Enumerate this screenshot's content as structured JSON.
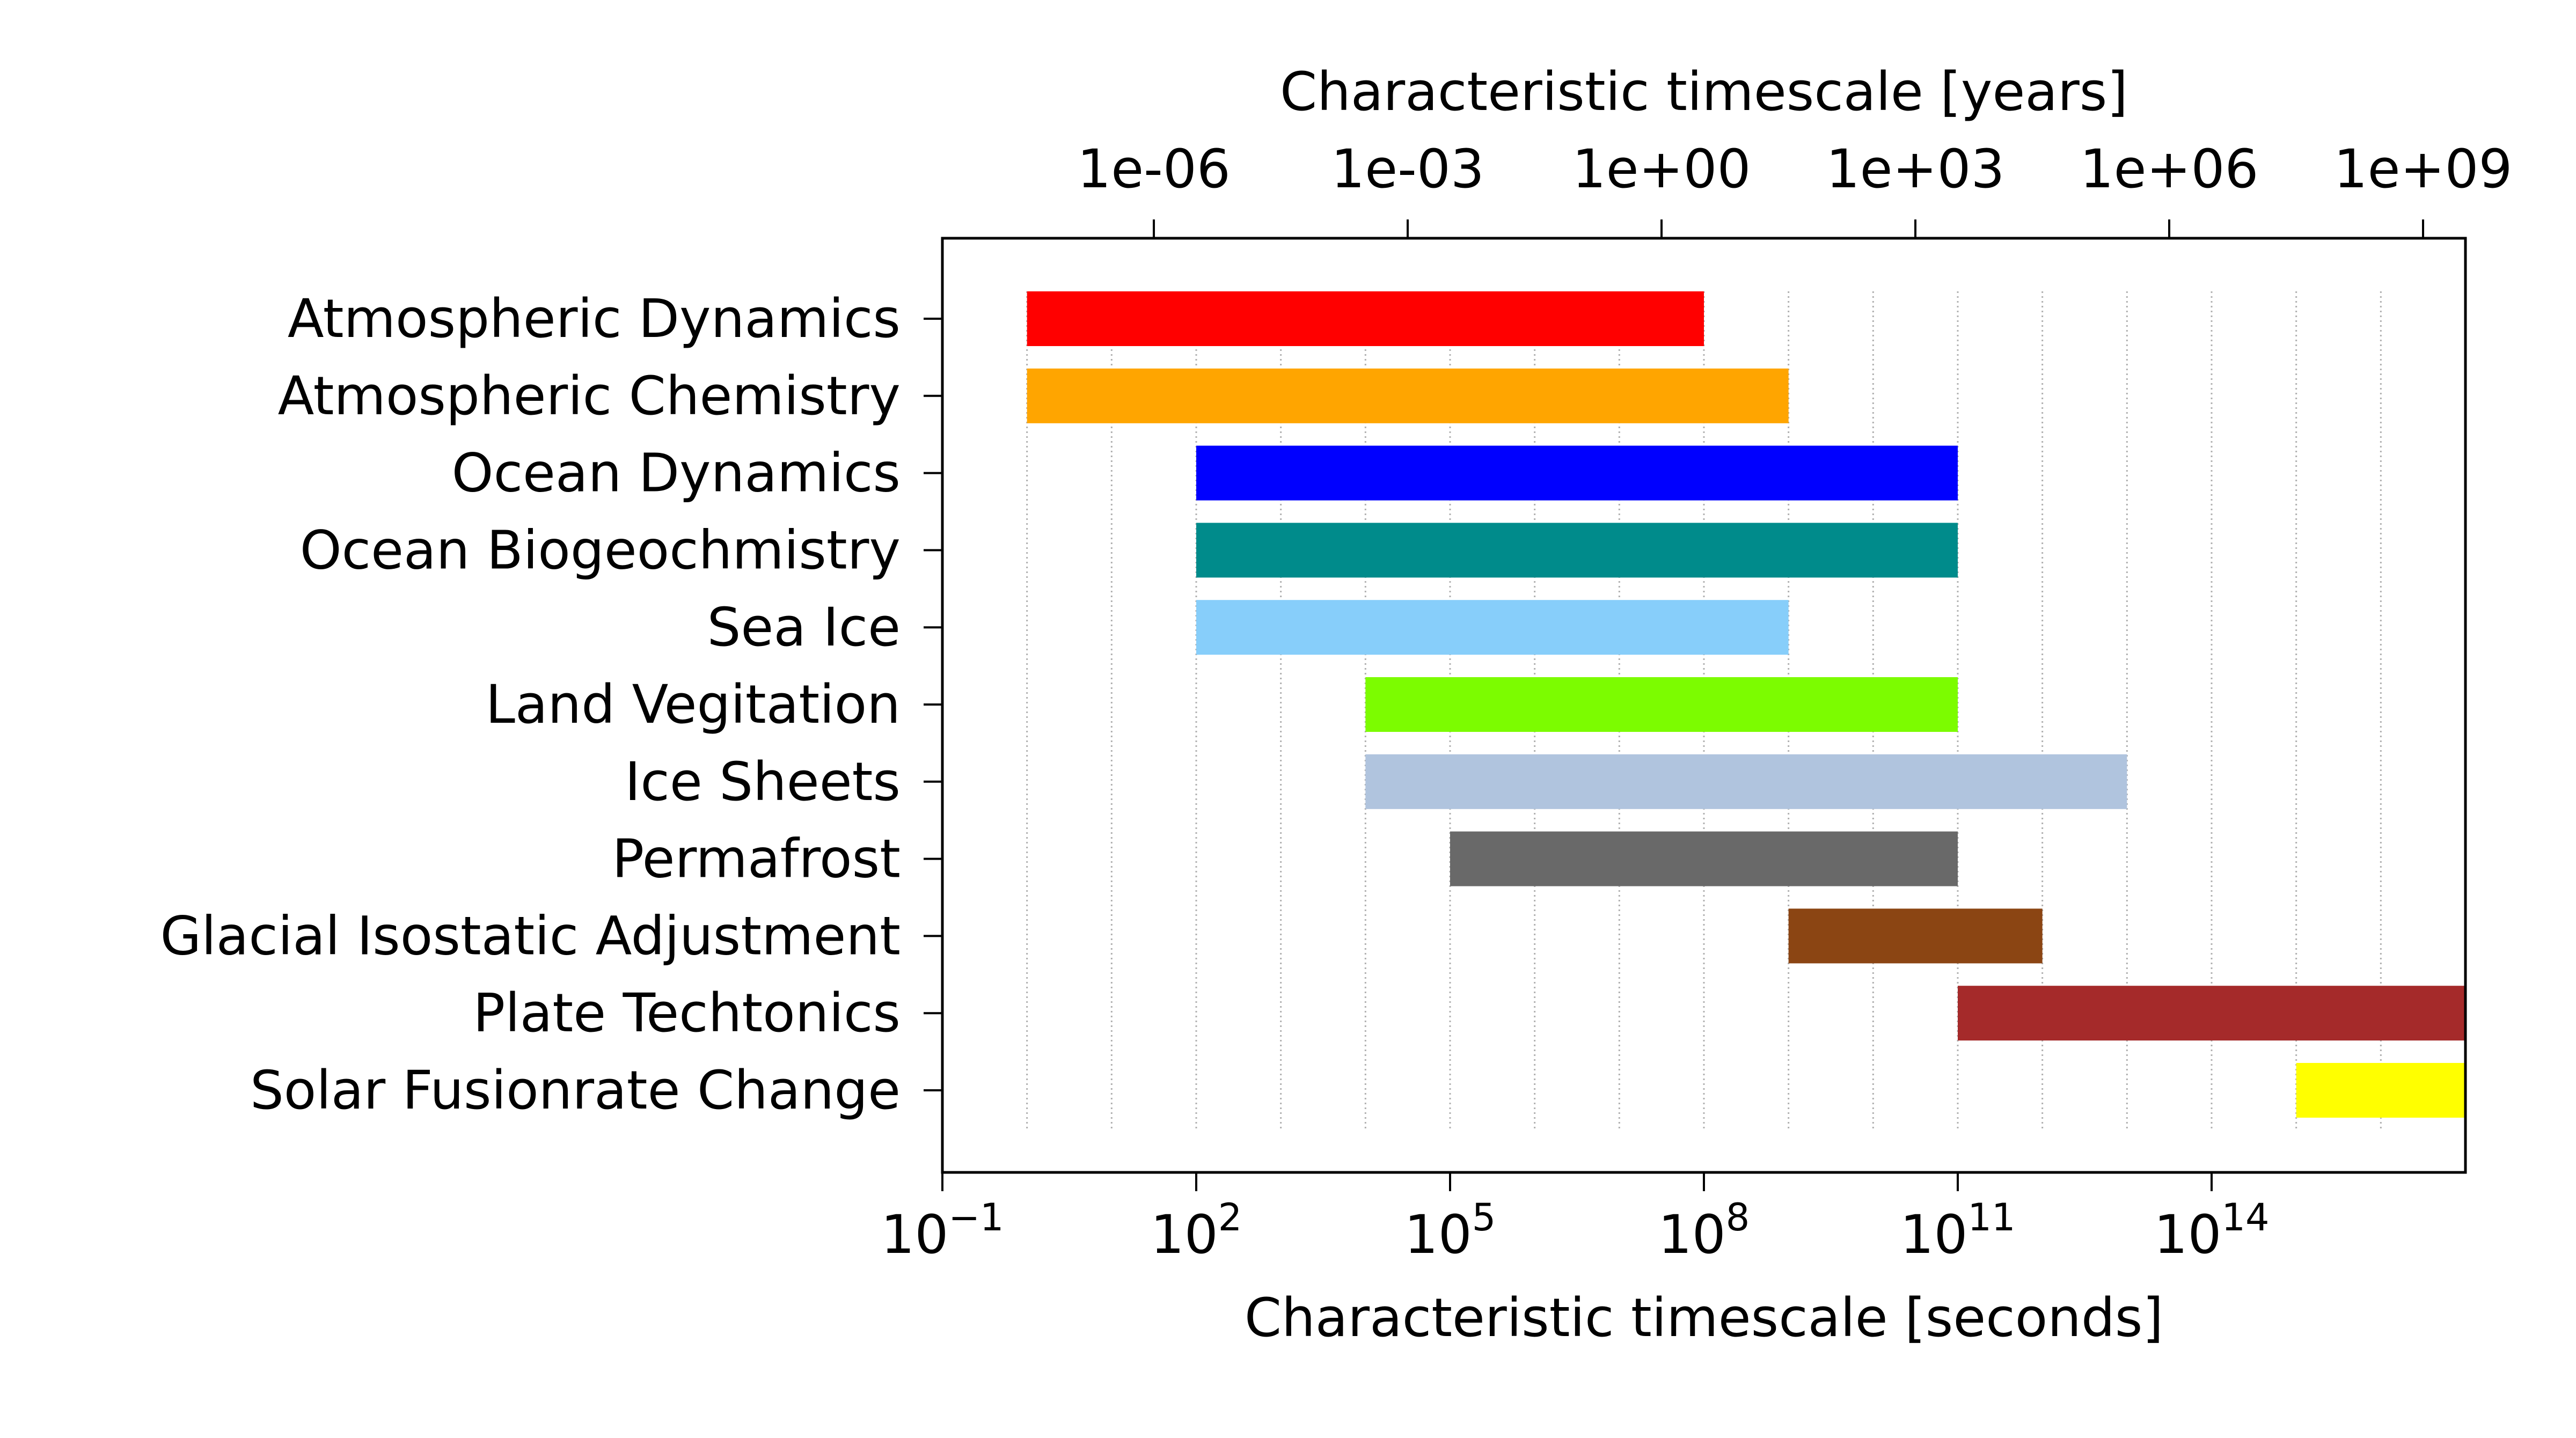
{
  "chart_data": {
    "type": "bar",
    "orientation": "horizontal",
    "scale": "log",
    "xlabel": "Characteristic timescale [seconds]",
    "top_xlabel": "Characteristic timescale [years]",
    "xlim": [
      0.1,
      1e+17
    ],
    "x_ticks": [
      {
        "value": 0.1,
        "base": "10",
        "exp": "−1"
      },
      {
        "value": 100,
        "base": "10",
        "exp": "2"
      },
      {
        "value": 100000,
        "base": "10",
        "exp": "5"
      },
      {
        "value": 100000000,
        "base": "10",
        "exp": "8"
      },
      {
        "value": 100000000000,
        "base": "10",
        "exp": "11"
      },
      {
        "value": 100000000000000,
        "base": "10",
        "exp": "14"
      }
    ],
    "top_ticks": [
      {
        "years": 1e-06,
        "label": "1e-06"
      },
      {
        "years": 0.001,
        "label": "1e-03"
      },
      {
        "years": 1,
        "label": "1e+00"
      },
      {
        "years": 1000.0,
        "label": "1e+03"
      },
      {
        "years": 1000000.0,
        "label": "1e+06"
      },
      {
        "years": 1000000000.0,
        "label": "1e+09"
      }
    ],
    "seconds_per_year": 31557600,
    "grid": "vertical dotted at each decade",
    "categories": [
      "Atmospheric Dynamics",
      "Atmospheric Chemistry",
      "Ocean Dynamics",
      "Ocean Biogeochmistry",
      "Sea Ice",
      "Land Vegitation",
      "Ice Sheets",
      "Permafrost",
      "Glacial Isostatic Adjustment",
      "Plate Techtonics",
      "Solar Fusionrate Change"
    ],
    "ranges": [
      [
        1,
        100000000
      ],
      [
        1,
        1000000000
      ],
      [
        100,
        100000000000
      ],
      [
        100,
        100000000000
      ],
      [
        100,
        1000000000
      ],
      [
        10000,
        100000000000
      ],
      [
        10000,
        10000000000000
      ],
      [
        100000,
        100000000000
      ],
      [
        1000000000,
        1000000000000
      ],
      [
        100000000000,
        100000000000000000
      ],
      [
        1000000000000000,
        1e+18
      ]
    ],
    "colors": [
      "#ff0000",
      "#ffa500",
      "#0000ff",
      "#008b8b",
      "#87cefa",
      "#7cfc00",
      "#b0c4de",
      "#696969",
      "#8b4513",
      "#a52a2a",
      "#ffff00"
    ]
  }
}
